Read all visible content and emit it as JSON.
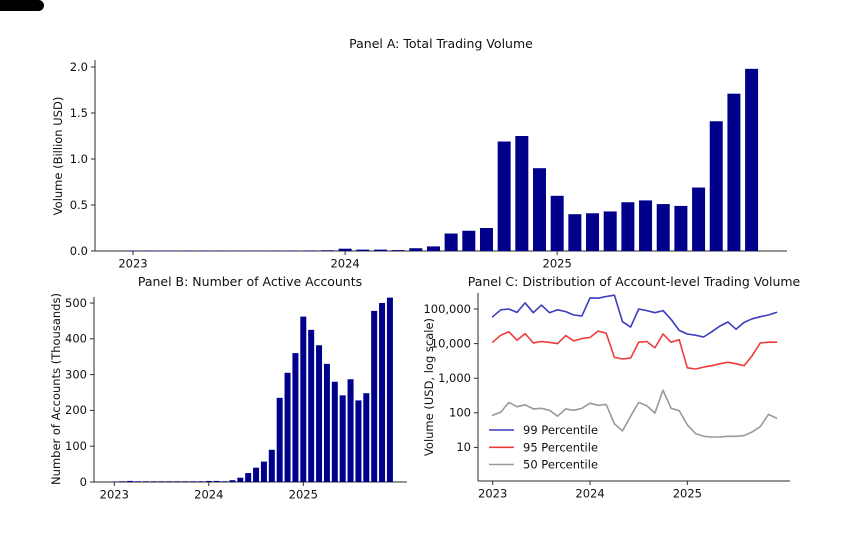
{
  "figure": {
    "background": "#ffffff",
    "text_color": "#111111",
    "axis_color": "#2b2b2b"
  },
  "chart_data": [
    {
      "type": "bar",
      "panel": "A",
      "title": "Panel A: Total Trading Volume",
      "ylabel": "Volume (Billion USD)",
      "x_start": "2023-01",
      "x_freq": "monthly",
      "n_points": 36,
      "x_tick_labels": [
        "2023",
        "2024",
        "2025"
      ],
      "x_tick_month_index": [
        0,
        12,
        24
      ],
      "y_ticks": [
        0.0,
        0.5,
        1.0,
        1.5,
        2.0
      ],
      "y_tick_labels": [
        "0.0",
        "0.5",
        "1.0",
        "1.5",
        "2.0"
      ],
      "ylim": [
        0,
        2.08
      ],
      "grid": false,
      "bar_color": "#00008b",
      "values": [
        0.001,
        0.001,
        0.002,
        0.002,
        0.003,
        0.003,
        0.004,
        0.004,
        0.005,
        0.005,
        0.006,
        0.008,
        0.025,
        0.015,
        0.015,
        0.01,
        0.03,
        0.05,
        0.19,
        0.22,
        0.25,
        1.19,
        1.25,
        0.9,
        0.6,
        0.4,
        0.41,
        0.43,
        0.53,
        0.55,
        0.51,
        0.49,
        0.69,
        1.41,
        1.71,
        1.98
      ]
    },
    {
      "type": "bar",
      "panel": "B",
      "title": "Panel B: Number of Active Accounts",
      "ylabel": "Number of Accounts (Thousands)",
      "x_start": "2023-01",
      "x_freq": "monthly",
      "n_points": 36,
      "x_tick_labels": [
        "2023",
        "2024",
        "2025"
      ],
      "x_tick_month_index": [
        0,
        12,
        24
      ],
      "y_ticks": [
        0,
        100,
        200,
        300,
        400,
        500
      ],
      "y_tick_labels": [
        "0",
        "100",
        "200",
        "300",
        "400",
        "500"
      ],
      "ylim": [
        0,
        520
      ],
      "grid": false,
      "bar_color": "#00008b",
      "values": [
        1,
        2,
        3,
        2,
        2,
        2,
        2,
        2,
        2,
        2,
        2,
        2,
        3,
        3,
        2,
        5,
        12,
        25,
        40,
        57,
        90,
        235,
        305,
        360,
        462,
        425,
        382,
        330,
        280,
        242,
        287,
        228,
        248,
        478,
        500,
        515
      ]
    },
    {
      "type": "line",
      "panel": "C",
      "title": "Panel C: Distribution of Account-level Trading Volume",
      "ylabel": "Volume (USD, log scale)",
      "y_scale": "log",
      "x_start": "2023-01",
      "x_freq": "monthly",
      "n_points": 36,
      "x_tick_labels": [
        "2023",
        "2024",
        "2025"
      ],
      "x_tick_month_index": [
        0,
        12,
        24
      ],
      "y_tick_values": [
        100000,
        10000,
        1000,
        100,
        10
      ],
      "y_tick_labels": [
        "100,000",
        "10,000",
        "1,000",
        "100",
        "10"
      ],
      "grid": false,
      "legend_position": "lower-left",
      "series": [
        {
          "name": "99 Percentile",
          "color": "#3c3cbe",
          "values": [
            60000,
            95000,
            100000,
            80000,
            150000,
            78000,
            130000,
            78000,
            95000,
            84000,
            67000,
            63000,
            210000,
            205000,
            230000,
            250000,
            43000,
            30000,
            100000,
            90000,
            78000,
            90000,
            50000,
            24000,
            19000,
            17500,
            15500,
            22000,
            32000,
            42000,
            26000,
            41000,
            52000,
            60000,
            67000,
            80000
          ]
        },
        {
          "name": "95 Percentile",
          "color": "#ee3b3b",
          "values": [
            11000,
            17500,
            22000,
            12500,
            19500,
            10500,
            11500,
            10800,
            10000,
            17000,
            12000,
            14000,
            15000,
            23000,
            20000,
            4000,
            3600,
            3800,
            11000,
            11500,
            7500,
            19000,
            11000,
            13000,
            2000,
            1850,
            2100,
            2300,
            2600,
            2900,
            2600,
            2300,
            4500,
            10500,
            11000,
            11000
          ]
        },
        {
          "name": "50 Percentile",
          "color": "#9a9a9a",
          "values": [
            85,
            105,
            200,
            150,
            170,
            130,
            135,
            118,
            80,
            130,
            118,
            135,
            190,
            165,
            175,
            48,
            30,
            80,
            200,
            160,
            98,
            450,
            135,
            115,
            45,
            25,
            21,
            20,
            20,
            21,
            21,
            22,
            28,
            40,
            90,
            70
          ]
        }
      ]
    }
  ]
}
